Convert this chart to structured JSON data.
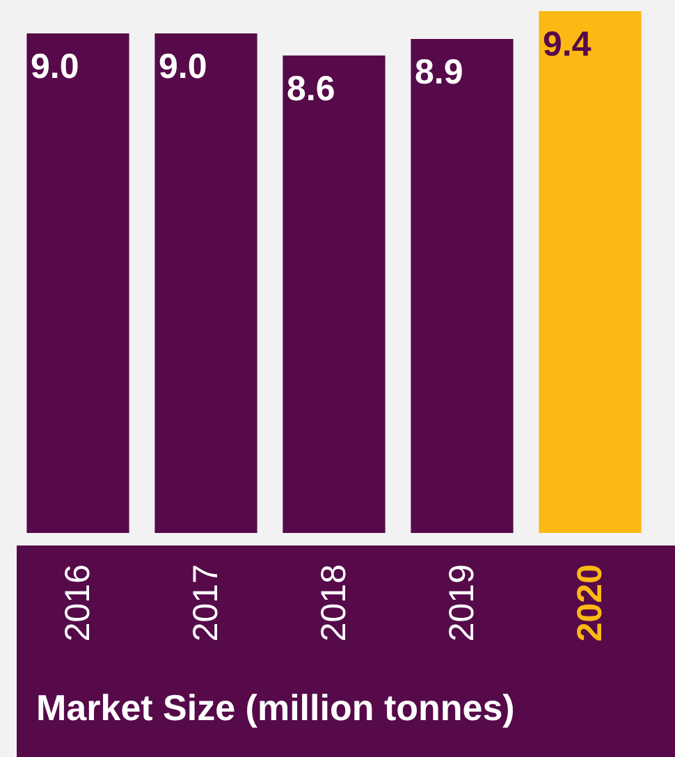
{
  "chart_data": {
    "type": "bar",
    "title": "Market Size (million tonnes)",
    "categories": [
      "2016",
      "2017",
      "2018",
      "2019",
      "2020"
    ],
    "values": [
      9.0,
      9.0,
      8.6,
      8.9,
      9.4
    ],
    "colors": [
      "#560a4a",
      "#560a4a",
      "#560a4a",
      "#560a4a",
      "#fdb913"
    ],
    "data_labels": true,
    "value_labels": [
      "9.0",
      "9.0",
      "8.6",
      "8.9",
      "9.4"
    ]
  }
}
